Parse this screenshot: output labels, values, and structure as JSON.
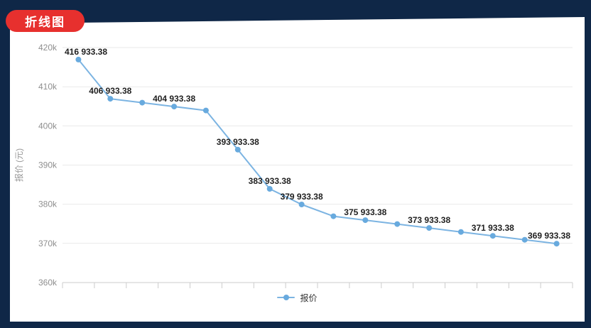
{
  "page": {
    "title_badge": "折线图",
    "colors": {
      "background": "#0f2747",
      "badge": "#e7302e",
      "panel": "#ffffff",
      "line": "#7cb4e2",
      "point": "#68aade"
    }
  },
  "chart_data": {
    "type": "line",
    "title": "折线图",
    "ylabel": "报价 (元)",
    "legend": [
      {
        "name": "报价",
        "color": "#68aade"
      }
    ],
    "legend_position": "bottom-center",
    "grid": "horizontal-gridlines-only",
    "ylim": [
      360000,
      420000
    ],
    "y_ticks": [
      {
        "value": 420000,
        "label": "420k"
      },
      {
        "value": 410000,
        "label": "410k"
      },
      {
        "value": 400000,
        "label": "400k"
      },
      {
        "value": 390000,
        "label": "390k"
      },
      {
        "value": 380000,
        "label": "380k"
      },
      {
        "value": 370000,
        "label": "370k"
      },
      {
        "value": 360000,
        "label": "360k"
      }
    ],
    "x_tick_labels_visible": false,
    "series": [
      {
        "name": "报价",
        "line_color": "#7cb4e2",
        "point_color": "#68aade",
        "values": [
          416933.38,
          406933.38,
          405933.38,
          404933.38,
          403933.38,
          393933.38,
          383933.38,
          379933.38,
          376933.38,
          375933.38,
          374933.38,
          373933.38,
          372933.38,
          371933.38,
          370933.38,
          369933.38
        ],
        "point_labels": [
          "416 933.38",
          "406 933.38",
          "",
          "404 933.38",
          "",
          "393 933.38",
          "383 933.38",
          "379 933.38",
          "",
          "375 933.38",
          "",
          "373 933.38",
          "",
          "371 933.38",
          "",
          "369 933.38"
        ]
      }
    ]
  }
}
